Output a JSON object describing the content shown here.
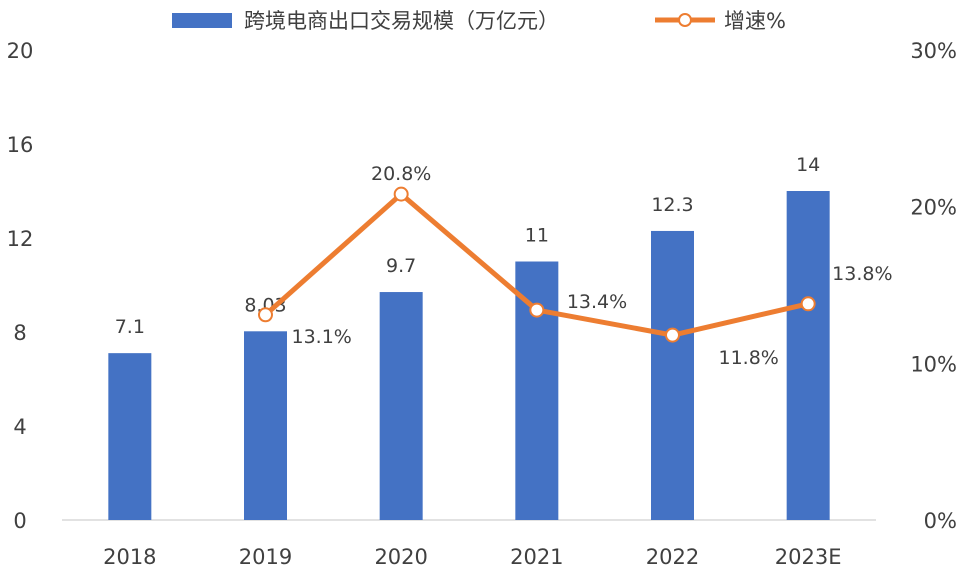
{
  "chart_data": {
    "type": "bar+line",
    "categories": [
      "2018",
      "2019",
      "2020",
      "2021",
      "2022",
      "2023E"
    ],
    "series": [
      {
        "name": "跨境电商出口交易规模（万亿元）",
        "type": "bar",
        "axis": "left",
        "values": [
          7.1,
          8.03,
          9.7,
          11,
          12.3,
          14
        ],
        "labels": [
          "7.1",
          "8.03",
          "9.7",
          "11",
          "12.3",
          "14"
        ]
      },
      {
        "name": "增速%",
        "type": "line",
        "axis": "right",
        "values": [
          null,
          13.1,
          20.8,
          13.4,
          11.8,
          13.8
        ],
        "labels": [
          null,
          "13.1%",
          "20.8%",
          "13.4%",
          "11.8%",
          "13.8%"
        ]
      }
    ],
    "y_left": {
      "min": 0,
      "max": 20,
      "ticks": [
        "0",
        "4",
        "8",
        "12",
        "16",
        "20"
      ]
    },
    "y_right": {
      "min": 0,
      "max": 30,
      "ticks": [
        "0%",
        "10%",
        "20%",
        "30%"
      ]
    },
    "legend_position": "top-center",
    "grid": false,
    "colors": {
      "bar": "#4472C4",
      "line": "#ED7D31",
      "text": "#404040",
      "axis": "#D9D9D9"
    }
  }
}
